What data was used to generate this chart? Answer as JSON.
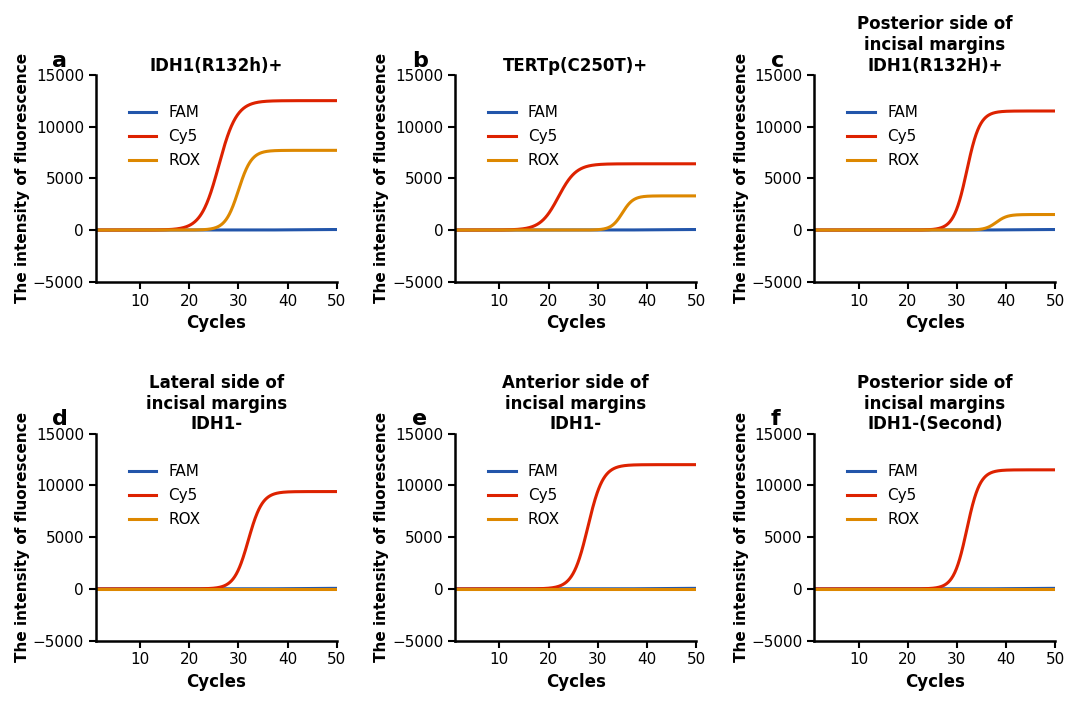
{
  "panels": [
    {
      "label": "a",
      "title": "IDH1(R132h)+",
      "curves": {
        "FAM": {
          "color": "#2255AA",
          "amplitude": 50,
          "midpoint": 40,
          "rate": 0.5
        },
        "Cy5": {
          "color": "#DD2200",
          "amplitude": 12500,
          "midpoint": 26,
          "rate": 0.55
        },
        "ROX": {
          "color": "#DD8800",
          "amplitude": 7700,
          "midpoint": 30,
          "rate": 0.75
        }
      }
    },
    {
      "label": "b",
      "title": "TERTp(C250T)+",
      "curves": {
        "FAM": {
          "color": "#2255AA",
          "amplitude": 50,
          "midpoint": 40,
          "rate": 0.5
        },
        "Cy5": {
          "color": "#DD2200",
          "amplitude": 6400,
          "midpoint": 22,
          "rate": 0.55
        },
        "ROX": {
          "color": "#DD8800",
          "amplitude": 3300,
          "midpoint": 35,
          "rate": 0.9
        }
      }
    },
    {
      "label": "c",
      "title": "Posterior side of\nincisal margins\nIDH1(R132H)+",
      "curves": {
        "FAM": {
          "color": "#2255AA",
          "amplitude": 50,
          "midpoint": 40,
          "rate": 0.5
        },
        "Cy5": {
          "color": "#DD2200",
          "amplitude": 11500,
          "midpoint": 32,
          "rate": 0.75
        },
        "ROX": {
          "color": "#DD8800",
          "amplitude": 1500,
          "midpoint": 38,
          "rate": 0.9
        }
      }
    },
    {
      "label": "d",
      "title": "Lateral side of\nincisal margins\nIDH1-",
      "curves": {
        "FAM": {
          "color": "#2255AA",
          "amplitude": 50,
          "midpoint": 40,
          "rate": 0.5
        },
        "Cy5": {
          "color": "#DD2200",
          "amplitude": 9400,
          "midpoint": 32,
          "rate": 0.7
        },
        "ROX": {
          "color": "#DD8800",
          "amplitude": 0,
          "midpoint": 40,
          "rate": 0.5
        }
      }
    },
    {
      "label": "e",
      "title": "Anterior side of\nincisal margins\nIDH1-",
      "curves": {
        "FAM": {
          "color": "#2255AA",
          "amplitude": 50,
          "midpoint": 40,
          "rate": 0.5
        },
        "Cy5": {
          "color": "#DD2200",
          "amplitude": 12000,
          "midpoint": 28,
          "rate": 0.65
        },
        "ROX": {
          "color": "#DD8800",
          "amplitude": 0,
          "midpoint": 40,
          "rate": 0.5
        }
      }
    },
    {
      "label": "f",
      "title": "Posterior side of\nincisal margins\nIDH1-(Second)",
      "curves": {
        "FAM": {
          "color": "#2255AA",
          "amplitude": 50,
          "midpoint": 40,
          "rate": 0.5
        },
        "Cy5": {
          "color": "#DD2200",
          "amplitude": 11500,
          "midpoint": 32,
          "rate": 0.75
        },
        "ROX": {
          "color": "#DD8800",
          "amplitude": 0,
          "midpoint": 40,
          "rate": 0.5
        }
      }
    }
  ],
  "ylim": [
    -5000,
    15000
  ],
  "xlim": [
    1,
    50
  ],
  "yticks": [
    -5000,
    0,
    5000,
    10000,
    15000
  ],
  "xticks": [
    10,
    20,
    30,
    40,
    50
  ],
  "ylabel": "The intensity of fluorescence",
  "xlabel": "Cycles",
  "background_color": "#FFFFFF",
  "line_width": 2.2,
  "label_fontsize": 16,
  "title_fontsize": 12,
  "axis_tick_fontsize": 11,
  "axis_label_fontsize": 12,
  "legend_fontsize": 11
}
